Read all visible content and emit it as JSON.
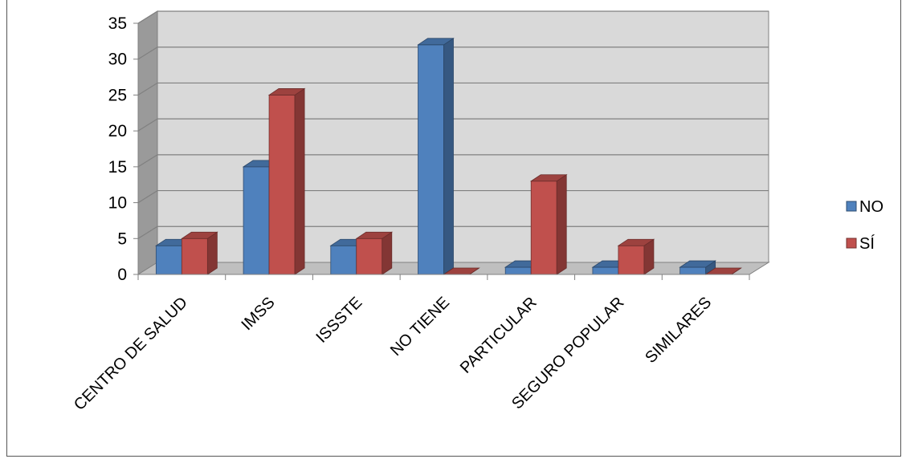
{
  "chart_data": {
    "type": "bar",
    "style": "3d-clustered-column",
    "categories": [
      "CENTRO DE SALUD",
      "IMSS",
      "ISSSTE",
      "NO TIENE",
      "PARTICULAR",
      "SEGURO POPULAR",
      "SIMILARES"
    ],
    "series": [
      {
        "name": "NO",
        "values": [
          4,
          15,
          4,
          32,
          1,
          1,
          1
        ],
        "color": "#4F81BD"
      },
      {
        "name": "SÍ",
        "values": [
          5,
          25,
          5,
          0,
          13,
          4,
          0
        ],
        "color": "#C0504D"
      }
    ],
    "yticks": [
      "0",
      "5",
      "10",
      "15",
      "20",
      "25",
      "30",
      "35"
    ],
    "ylim": [
      0,
      35
    ],
    "grid": true,
    "legend": "right",
    "wall_color": "#D9D9D9",
    "floor_color": "#BFBFBF",
    "gridline_color": "#808080"
  }
}
